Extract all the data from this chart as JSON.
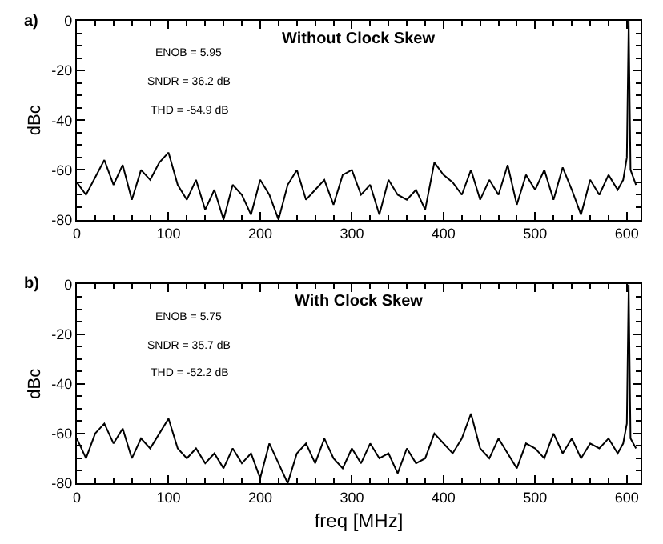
{
  "chart_data": [
    {
      "type": "line",
      "title": "Without Clock Skew",
      "ylabel": "dBc",
      "x": [
        0,
        10,
        20,
        30,
        40,
        50,
        60,
        70,
        80,
        90,
        100,
        110,
        120,
        130,
        140,
        150,
        160,
        170,
        180,
        190,
        200,
        210,
        220,
        230,
        240,
        250,
        260,
        270,
        280,
        290,
        300,
        310,
        320,
        330,
        340,
        350,
        360,
        370,
        380,
        390,
        400,
        410,
        420,
        430,
        440,
        450,
        460,
        470,
        480,
        490,
        500,
        510,
        520,
        530,
        540,
        550,
        560,
        570,
        580,
        590,
        596,
        600,
        602,
        604,
        610
      ],
      "series": [
        {
          "color": "#000000",
          "values": [
            -65,
            -70,
            -63,
            -56,
            -66,
            -58,
            -72,
            -60,
            -64,
            -57,
            -53,
            -66,
            -72,
            -64,
            -76,
            -68,
            -80,
            -66,
            -70,
            -78,
            -64,
            -70,
            -80,
            -66,
            -60,
            -72,
            -68,
            -64,
            -74,
            -62,
            -60,
            -70,
            -66,
            -78,
            -64,
            -70,
            -72,
            -68,
            -76,
            -57,
            -62,
            -65,
            -70,
            -60,
            -72,
            -64,
            -70,
            -58,
            -74,
            -62,
            -68,
            -60,
            -72,
            -59,
            -68,
            -78,
            -64,
            -70,
            -62,
            -68,
            -64,
            -55,
            0,
            -60,
            -66
          ]
        }
      ],
      "xlim": [
        0,
        615
      ],
      "xticks": [
        0,
        100,
        200,
        300,
        400,
        500,
        600
      ],
      "ylim": [
        -80,
        0
      ],
      "yticks": [
        -80,
        -60,
        -40,
        -20,
        0
      ],
      "annotations": [
        "a)",
        "ENOB = 5.95",
        "SNDR = 36.2 dB",
        "THD = -54.9 dB"
      ]
    },
    {
      "type": "line",
      "title": "With Clock Skew",
      "xlabel": "freq [MHz]",
      "ylabel": "dBc",
      "x": [
        0,
        10,
        20,
        30,
        40,
        50,
        60,
        70,
        80,
        90,
        100,
        110,
        120,
        130,
        140,
        150,
        160,
        170,
        180,
        190,
        200,
        210,
        220,
        230,
        240,
        250,
        260,
        270,
        280,
        290,
        300,
        310,
        320,
        330,
        340,
        350,
        360,
        370,
        380,
        390,
        400,
        410,
        420,
        430,
        440,
        450,
        460,
        470,
        480,
        490,
        500,
        510,
        520,
        530,
        540,
        550,
        560,
        570,
        580,
        590,
        596,
        600,
        602,
        604,
        610
      ],
      "series": [
        {
          "color": "#000000",
          "values": [
            -62,
            -70,
            -60,
            -56,
            -64,
            -58,
            -70,
            -62,
            -66,
            -60,
            -54,
            -66,
            -70,
            -66,
            -72,
            -68,
            -74,
            -66,
            -72,
            -68,
            -78,
            -64,
            -72,
            -80,
            -68,
            -64,
            -72,
            -62,
            -70,
            -74,
            -66,
            -72,
            -64,
            -70,
            -68,
            -76,
            -66,
            -72,
            -70,
            -60,
            -64,
            -68,
            -62,
            -52,
            -66,
            -70,
            -62,
            -68,
            -74,
            -64,
            -66,
            -70,
            -60,
            -68,
            -62,
            -70,
            -64,
            -66,
            -62,
            -68,
            -64,
            -56,
            0,
            -62,
            -66
          ]
        }
      ],
      "xlim": [
        0,
        615
      ],
      "xticks": [
        0,
        100,
        200,
        300,
        400,
        500,
        600
      ],
      "ylim": [
        -80,
        0
      ],
      "yticks": [
        -80,
        -60,
        -40,
        -20,
        0
      ],
      "annotations": [
        "b)",
        "ENOB = 5.75",
        "SNDR = 35.7 dB",
        "THD = -52.2 dB"
      ]
    }
  ]
}
